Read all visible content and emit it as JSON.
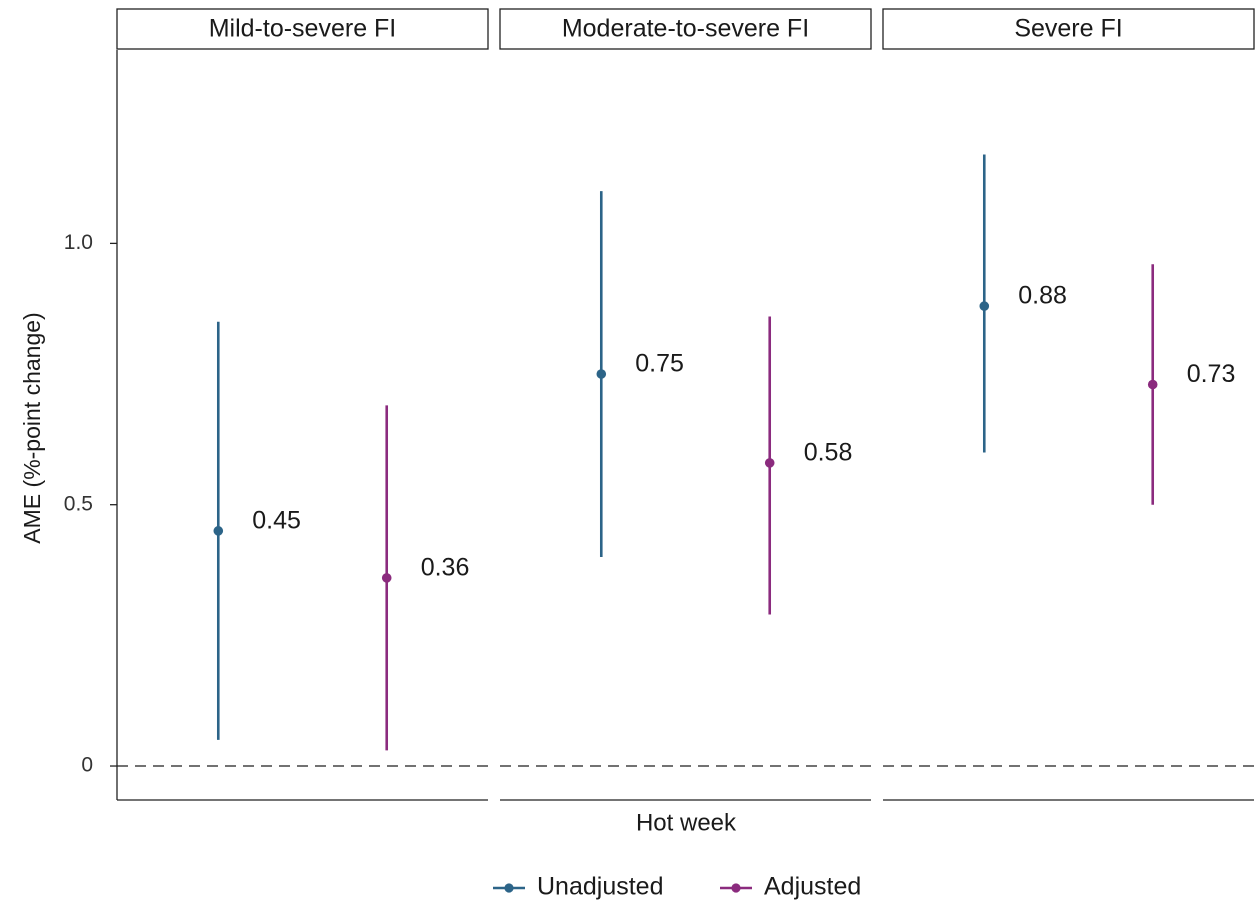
{
  "chart_data": {
    "type": "point-range",
    "ylabel": "AME (%-point change)",
    "xlabel": "Hot week",
    "ylim": [
      -0.065,
      1.37
    ],
    "yticks": [
      {
        "value": 0,
        "label": "0"
      },
      {
        "value": 0.5,
        "label": "0.5"
      },
      {
        "value": 1.0,
        "label": "1.0"
      }
    ],
    "reference_line": {
      "value": 0,
      "style": "dashed"
    },
    "colors": {
      "Unadjusted": "#2c6488",
      "Adjusted": "#8b2b7e"
    },
    "legend": {
      "position": "bottom",
      "entries": [
        "Unadjusted",
        "Adjusted"
      ]
    },
    "panels": [
      {
        "title": "Mild-to-severe FI",
        "points": [
          {
            "series": "Unadjusted",
            "estimate": 0.45,
            "lower": 0.05,
            "upper": 0.85,
            "label": "0.45"
          },
          {
            "series": "Adjusted",
            "estimate": 0.36,
            "lower": 0.03,
            "upper": 0.69,
            "label": "0.36"
          }
        ]
      },
      {
        "title": "Moderate-to-severe FI",
        "points": [
          {
            "series": "Unadjusted",
            "estimate": 0.75,
            "lower": 0.4,
            "upper": 1.1,
            "label": "0.75"
          },
          {
            "series": "Adjusted",
            "estimate": 0.58,
            "lower": 0.29,
            "upper": 0.86,
            "label": "0.58"
          }
        ]
      },
      {
        "title": "Severe FI",
        "points": [
          {
            "series": "Unadjusted",
            "estimate": 0.88,
            "lower": 0.6,
            "upper": 1.17,
            "label": "0.88"
          },
          {
            "series": "Adjusted",
            "estimate": 0.73,
            "lower": 0.5,
            "upper": 0.96,
            "label": "0.73"
          }
        ]
      }
    ]
  }
}
